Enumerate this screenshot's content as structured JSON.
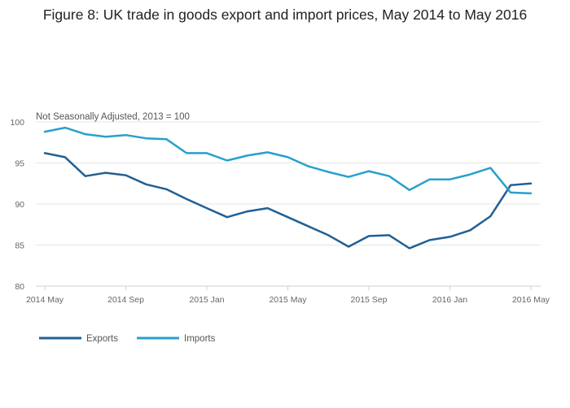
{
  "chart_data": {
    "type": "line",
    "title": "Figure 8: UK trade in goods export and import prices, May 2014 to May 2016",
    "subtitle": "Not Seasonally Adjusted, 2013 = 100",
    "xlabel": "",
    "ylabel": "",
    "ylim": [
      80,
      100
    ],
    "yticks": [
      "80",
      "85",
      "90",
      "95",
      "100"
    ],
    "xticks": [
      {
        "label": "2014 May",
        "index": 0
      },
      {
        "label": "2014 Sep",
        "index": 4
      },
      {
        "label": "2015 Jan",
        "index": 8
      },
      {
        "label": "2015 May",
        "index": 12
      },
      {
        "label": "2015 Sep",
        "index": 16
      },
      {
        "label": "2016 Jan",
        "index": 20
      },
      {
        "label": "2016 May",
        "index": 24
      }
    ],
    "categories": [
      "2014 May",
      "2014 Jun",
      "2014 Jul",
      "2014 Aug",
      "2014 Sep",
      "2014 Oct",
      "2014 Nov",
      "2014 Dec",
      "2015 Jan",
      "2015 Feb",
      "2015 Mar",
      "2015 Apr",
      "2015 May",
      "2015 Jun",
      "2015 Jul",
      "2015 Aug",
      "2015 Sep",
      "2015 Oct",
      "2015 Nov",
      "2015 Dec",
      "2016 Jan",
      "2016 Feb",
      "2016 Mar",
      "2016 Apr",
      "2016 May"
    ],
    "series": [
      {
        "name": "Exports",
        "color": "#206095",
        "values": [
          96.2,
          95.7,
          93.4,
          93.8,
          93.5,
          92.4,
          91.8,
          90.6,
          89.5,
          88.4,
          89.1,
          89.5,
          88.4,
          87.3,
          86.2,
          84.8,
          86.1,
          86.2,
          84.6,
          85.6,
          86.0,
          86.8,
          88.5,
          92.3,
          92.5
        ]
      },
      {
        "name": "Imports",
        "color": "#27a0cc",
        "values": [
          98.8,
          99.3,
          98.5,
          98.2,
          98.4,
          98.0,
          97.9,
          96.2,
          96.2,
          95.3,
          95.9,
          96.3,
          95.7,
          94.6,
          93.9,
          93.3,
          94.0,
          93.4,
          91.7,
          93.0,
          93.0,
          93.6,
          94.4,
          91.4,
          91.3
        ]
      }
    ],
    "grid": true,
    "legend": "bottom-left"
  }
}
